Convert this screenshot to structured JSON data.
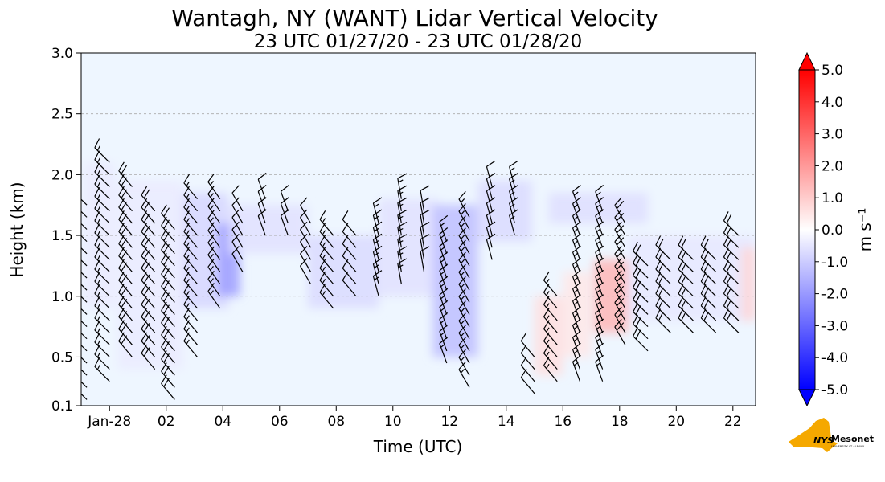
{
  "chart_data": {
    "type": "heatmap",
    "title": "Wantagh, NY (WANT) Lidar Vertical Velocity",
    "subtitle": "23 UTC 01/27/20 - 23 UTC 01/28/20",
    "xlabel": "Time (UTC)",
    "ylabel": "Height (km)",
    "x_unit": "hours since 00 UTC 01/28/20",
    "xlim": [
      -1.0,
      22.8
    ],
    "ylim": [
      0.1,
      3.0
    ],
    "x_ticks": [
      {
        "value": 0,
        "label": "Jan-28"
      },
      {
        "value": 2,
        "label": "02"
      },
      {
        "value": 4,
        "label": "04"
      },
      {
        "value": 6,
        "label": "06"
      },
      {
        "value": 8,
        "label": "08"
      },
      {
        "value": 10,
        "label": "10"
      },
      {
        "value": 12,
        "label": "12"
      },
      {
        "value": 14,
        "label": "14"
      },
      {
        "value": 16,
        "label": "16"
      },
      {
        "value": 18,
        "label": "18"
      },
      {
        "value": 20,
        "label": "20"
      },
      {
        "value": 22,
        "label": "22"
      }
    ],
    "y_ticks": [
      {
        "value": 0.1,
        "label": "0.1"
      },
      {
        "value": 0.5,
        "label": "0.5"
      },
      {
        "value": 1.0,
        "label": "1.0"
      },
      {
        "value": 1.5,
        "label": "1.5"
      },
      {
        "value": 2.0,
        "label": "2.0"
      },
      {
        "value": 2.5,
        "label": "2.5"
      },
      {
        "value": 3.0,
        "label": "3.0"
      }
    ],
    "grid": "horizontal dashed",
    "colorbar": {
      "label": "m s⁻¹",
      "vmin": -5.0,
      "vmax": 5.0,
      "ticks": [
        "5.0",
        "4.0",
        "3.0",
        "2.0",
        "1.0",
        "0.0",
        "-1.0",
        "-2.0",
        "-3.0",
        "-4.0",
        "-5.0"
      ],
      "colors": {
        "negative": "#0000ff",
        "zero": "#ffffff",
        "positive": "#ff0000"
      },
      "extend": "both"
    },
    "background_color": "#eef6ff",
    "velocity_regions": [
      {
        "t0": -0.9,
        "t1": 0.2,
        "h0": 0.9,
        "h1": 2.1,
        "w": -0.25
      },
      {
        "t0": 0.3,
        "t1": 2.6,
        "h0": 0.4,
        "h1": 1.95,
        "w": -0.25
      },
      {
        "t0": 2.6,
        "t1": 4.2,
        "h0": 0.9,
        "h1": 1.85,
        "w": -0.5
      },
      {
        "t0": 3.8,
        "t1": 4.6,
        "h0": 1.0,
        "h1": 1.6,
        "w": -1.2
      },
      {
        "t0": 4.2,
        "t1": 7.0,
        "h0": 1.35,
        "h1": 1.75,
        "w": -0.35
      },
      {
        "t0": 7.0,
        "t1": 9.5,
        "h0": 0.9,
        "h1": 1.5,
        "w": -0.45
      },
      {
        "t0": 9.5,
        "t1": 11.6,
        "h0": 1.0,
        "h1": 1.8,
        "w": -0.35
      },
      {
        "t0": 11.4,
        "t1": 13.0,
        "h0": 0.5,
        "h1": 1.75,
        "w": -0.8
      },
      {
        "t0": 13.0,
        "t1": 14.9,
        "h0": 1.45,
        "h1": 1.95,
        "w": -0.45
      },
      {
        "t0": 15.0,
        "t1": 16.0,
        "h0": 0.35,
        "h1": 1.0,
        "w": 0.4
      },
      {
        "t0": 16.0,
        "t1": 17.0,
        "h0": 0.5,
        "h1": 1.2,
        "w": 0.3
      },
      {
        "t0": 17.1,
        "t1": 18.3,
        "h0": 0.7,
        "h1": 1.3,
        "w": 0.9
      },
      {
        "t0": 18.3,
        "t1": 22.8,
        "h0": 0.8,
        "h1": 1.5,
        "w": -0.3
      },
      {
        "t0": 15.5,
        "t1": 19.0,
        "h0": 1.6,
        "h1": 1.85,
        "w": -0.4
      },
      {
        "t0": 22.3,
        "t1": 22.8,
        "h0": 0.8,
        "h1": 1.4,
        "w": 0.5
      }
    ],
    "wind_barbs": [
      {
        "t": -0.8,
        "h0": 0.15,
        "h1": 1.8,
        "dir": 315,
        "barbs": 1.5
      },
      {
        "t": 0.0,
        "h0": 0.3,
        "h1": 2.1,
        "dir": 315,
        "barbs": 1.5
      },
      {
        "t": 0.8,
        "h0": 0.5,
        "h1": 1.9,
        "dir": 320,
        "barbs": 2
      },
      {
        "t": 1.6,
        "h0": 0.4,
        "h1": 1.7,
        "dir": 320,
        "barbs": 2
      },
      {
        "t": 2.3,
        "h0": 0.15,
        "h1": 1.6,
        "dir": 320,
        "barbs": 2
      },
      {
        "t": 3.1,
        "h0": 0.5,
        "h1": 1.8,
        "dir": 320,
        "barbs": 1.5
      },
      {
        "t": 3.9,
        "h0": 0.9,
        "h1": 1.8,
        "dir": 325,
        "barbs": 1.5
      },
      {
        "t": 4.7,
        "h0": 1.2,
        "h1": 1.7,
        "dir": 330,
        "barbs": 1
      },
      {
        "t": 5.5,
        "h0": 1.5,
        "h1": 1.8,
        "dir": 340,
        "barbs": 1
      },
      {
        "t": 6.3,
        "h0": 1.5,
        "h1": 1.7,
        "dir": 340,
        "barbs": 1
      },
      {
        "t": 7.1,
        "h0": 1.1,
        "h1": 1.6,
        "dir": 330,
        "barbs": 1
      },
      {
        "t": 7.9,
        "h0": 0.9,
        "h1": 1.5,
        "dir": 320,
        "barbs": 1.5
      },
      {
        "t": 8.7,
        "h0": 1.0,
        "h1": 1.5,
        "dir": 320,
        "barbs": 1
      },
      {
        "t": 9.5,
        "h0": 1.0,
        "h1": 1.6,
        "dir": 345,
        "barbs": 1.5
      },
      {
        "t": 10.3,
        "h0": 1.1,
        "h1": 1.8,
        "dir": 350,
        "barbs": 1.5
      },
      {
        "t": 11.1,
        "h0": 1.2,
        "h1": 1.7,
        "dir": 350,
        "barbs": 1
      },
      {
        "t": 11.9,
        "h0": 0.45,
        "h1": 1.5,
        "dir": 340,
        "barbs": 1.5
      },
      {
        "t": 12.7,
        "h0": 0.25,
        "h1": 1.7,
        "dir": 330,
        "barbs": 1.5
      },
      {
        "t": 13.5,
        "h0": 1.3,
        "h1": 1.9,
        "dir": 345,
        "barbs": 1
      },
      {
        "t": 14.3,
        "h0": 1.5,
        "h1": 1.9,
        "dir": 345,
        "barbs": 1.5
      },
      {
        "t": 15.0,
        "h0": 0.2,
        "h1": 0.5,
        "dir": 320,
        "barbs": 1
      },
      {
        "t": 15.8,
        "h0": 0.3,
        "h1": 1.0,
        "dir": 320,
        "barbs": 1.5
      },
      {
        "t": 16.6,
        "h0": 0.3,
        "h1": 1.7,
        "dir": 340,
        "barbs": 1.5
      },
      {
        "t": 17.4,
        "h0": 0.3,
        "h1": 1.7,
        "dir": 340,
        "barbs": 1.5
      },
      {
        "t": 18.2,
        "h0": 0.6,
        "h1": 1.6,
        "dir": 330,
        "barbs": 2
      },
      {
        "t": 19.0,
        "h0": 0.55,
        "h1": 1.3,
        "dir": 315,
        "barbs": 2
      },
      {
        "t": 19.8,
        "h0": 0.7,
        "h1": 1.3,
        "dir": 315,
        "barbs": 2
      },
      {
        "t": 20.6,
        "h0": 0.7,
        "h1": 1.3,
        "dir": 315,
        "barbs": 2
      },
      {
        "t": 21.4,
        "h0": 0.7,
        "h1": 1.3,
        "dir": 315,
        "barbs": 2
      },
      {
        "t": 22.2,
        "h0": 0.7,
        "h1": 1.5,
        "dir": 315,
        "barbs": 2
      }
    ]
  },
  "logo": {
    "name": "NYS Mesonet",
    "text_primary": "NYS",
    "text_secondary": "Mesonet",
    "text_small": "UNIVERSITY AT ALBANY",
    "state_color": "#f5a800",
    "text_color": "#46166b"
  }
}
